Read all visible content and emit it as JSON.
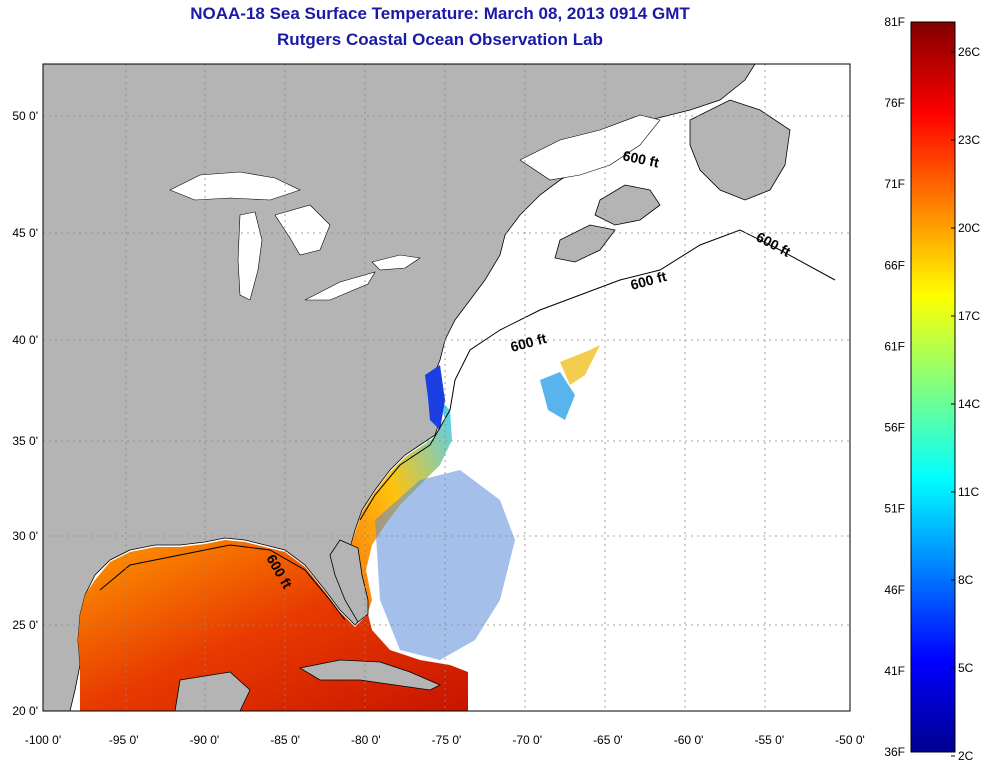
{
  "header": {
    "title": "NOAA-18 Sea Surface Temperature:  March 08, 2013 0914 GMT",
    "subtitle": "Rutgers Coastal Ocean Observation Lab"
  },
  "map": {
    "lon_range": [
      -100,
      -50
    ],
    "lat_range": [
      20,
      52
    ],
    "lon_ticks": [
      "-100 0'",
      "-95 0'",
      "-90 0'",
      "-85 0'",
      "-80 0'",
      "-75 0'",
      "-70 0'",
      "-65 0'",
      "-60 0'",
      "-55 0'",
      "-50 0'"
    ],
    "lat_ticks": [
      "20 0'",
      "25 0'",
      "30 0'",
      "35 0'",
      "40 0'",
      "45 0'",
      "50 0'"
    ],
    "grid": true,
    "isobath_label": "600 ft",
    "colors": {
      "land": "#b4b4b4",
      "no_data": "#ffffff",
      "coast": "#000000",
      "grid": "#888888"
    }
  },
  "colorbar": {
    "f_labels": [
      "81F",
      "76F",
      "71F",
      "66F",
      "61F",
      "56F",
      "51F",
      "46F",
      "41F",
      "36F"
    ],
    "c_labels": [
      "26C",
      "23C",
      "20C",
      "17C",
      "14C",
      "11C",
      "8C",
      "5C",
      "2C"
    ],
    "range_f": [
      36,
      81
    ],
    "colormap": "jet"
  }
}
